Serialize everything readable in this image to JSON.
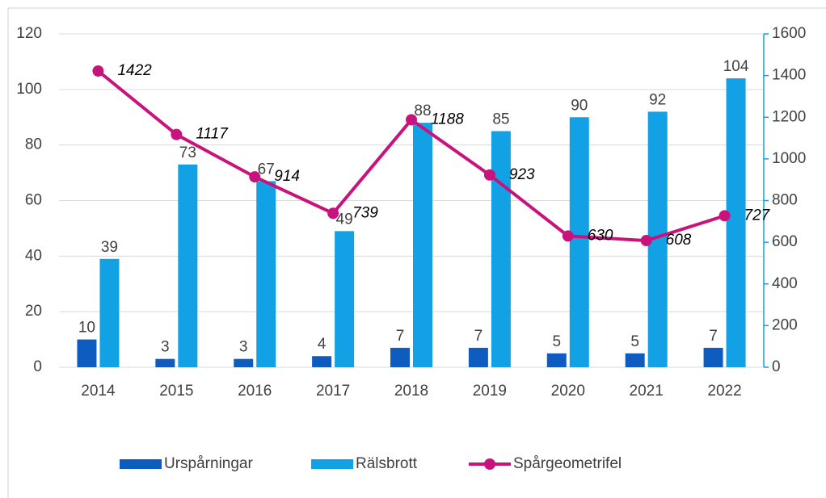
{
  "chart_data": {
    "type": "bar",
    "categories": [
      "2014",
      "2015",
      "2016",
      "2017",
      "2018",
      "2019",
      "2020",
      "2021",
      "2022"
    ],
    "series": [
      {
        "name": "Urspårningar",
        "type": "bar",
        "color": "#0f5cc0",
        "values": [
          10,
          3,
          3,
          4,
          7,
          7,
          5,
          5,
          7
        ]
      },
      {
        "name": "Rälsbrott",
        "type": "bar",
        "color": "#13a1e6",
        "values": [
          39,
          73,
          67,
          49,
          88,
          85,
          90,
          92,
          104
        ]
      },
      {
        "name": "Spårgeometrifel",
        "type": "line",
        "axis": "y2",
        "color": "#c8137d",
        "values": [
          1422,
          1117,
          914,
          739,
          1188,
          923,
          630,
          608,
          727
        ]
      }
    ],
    "ylim": [
      0,
      120
    ],
    "yticks": [
      0,
      20,
      40,
      60,
      80,
      100,
      120
    ],
    "y2lim": [
      0,
      1600
    ],
    "y2ticks": [
      0,
      200,
      400,
      600,
      800,
      1000,
      1200,
      1400,
      1600
    ],
    "grid": true,
    "legend": "bottom"
  }
}
